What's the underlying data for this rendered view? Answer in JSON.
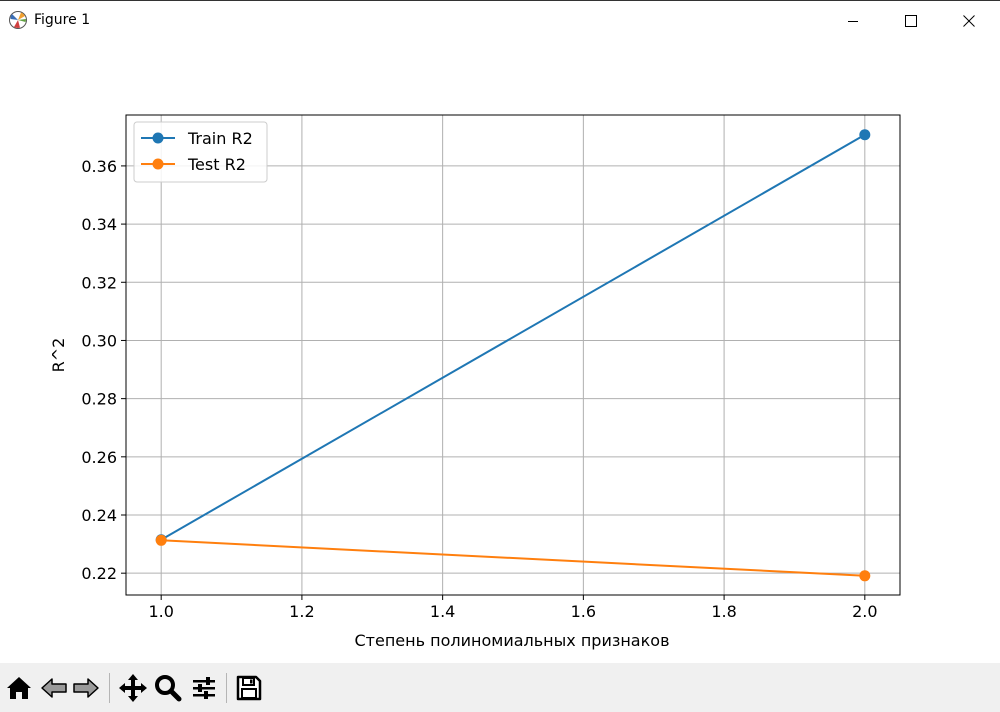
{
  "window": {
    "title": "Figure 1",
    "icon": "matplotlib-logo-icon",
    "controls": [
      "minimize-icon",
      "maximize-icon",
      "close-icon"
    ]
  },
  "toolbar": {
    "buttons": [
      {
        "name": "home-button",
        "icon": "home-icon",
        "tooltip": "Reset original view"
      },
      {
        "name": "back-button",
        "icon": "arrow-left-icon",
        "tooltip": "Back to previous view"
      },
      {
        "name": "forward-button",
        "icon": "arrow-right-icon",
        "tooltip": "Forward to next view"
      },
      {
        "name": "pan-button",
        "icon": "move-icon",
        "tooltip": "Pan axes"
      },
      {
        "name": "zoom-button",
        "icon": "zoom-icon",
        "tooltip": "Zoom to rectangle"
      },
      {
        "name": "configure-button",
        "icon": "sliders-icon",
        "tooltip": "Configure subplots"
      },
      {
        "name": "save-button",
        "icon": "floppy-disk-icon",
        "tooltip": "Save the figure"
      }
    ]
  },
  "chart_data": {
    "type": "line",
    "title": "",
    "xlabel": "Степень полиномиальных признаков",
    "ylabel": "R^2",
    "xlim": [
      0.95,
      2.05
    ],
    "ylim": [
      0.2125,
      0.3775
    ],
    "xticks": [
      1.0,
      1.2,
      1.4,
      1.6,
      1.8,
      2.0
    ],
    "xtick_labels": [
      "1.0",
      "1.2",
      "1.4",
      "1.6",
      "1.8",
      "2.0"
    ],
    "yticks": [
      0.22,
      0.24,
      0.26,
      0.28,
      0.3,
      0.32,
      0.34,
      0.36
    ],
    "ytick_labels": [
      "0.22",
      "0.24",
      "0.26",
      "0.28",
      "0.30",
      "0.32",
      "0.34",
      "0.36"
    ],
    "grid": true,
    "legend_position": "upper-left",
    "x": [
      1,
      2
    ],
    "series": [
      {
        "name": "Train R2",
        "color": "#1f77b4",
        "marker": "circle",
        "values": [
          0.2315,
          0.3707
        ]
      },
      {
        "name": "Test R2",
        "color": "#ff7f0e",
        "marker": "circle",
        "values": [
          0.2313,
          0.2191
        ]
      }
    ]
  }
}
